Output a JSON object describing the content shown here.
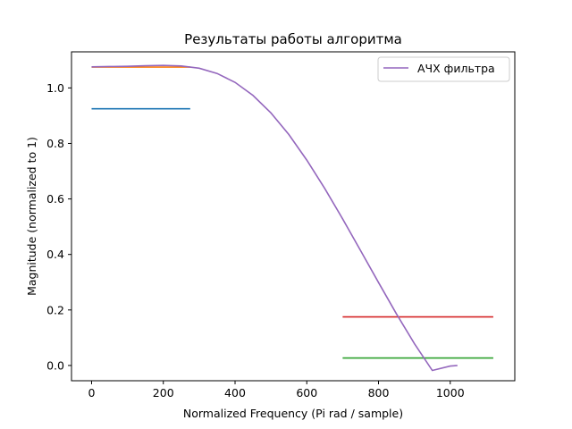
{
  "chart_data": {
    "type": "line",
    "title": "Результаты работы алгоритма",
    "xlabel": "Normalized Frequency (Pi rad / sample)",
    "ylabel": "Magnitude (normalized to 1)",
    "xlim": [
      -56,
      1180
    ],
    "ylim": [
      -0.055,
      1.13
    ],
    "xticks": [
      0,
      200,
      400,
      600,
      800,
      1000
    ],
    "yticks": [
      0.0,
      0.2,
      0.4,
      0.6,
      0.8,
      1.0
    ],
    "grid": false,
    "legend_position": "top-right",
    "legend": [
      "АЧХ фильтра"
    ],
    "series": [
      {
        "color": "#1f77b4",
        "x": [
          0,
          275
        ],
        "y": [
          0.925,
          0.925
        ]
      },
      {
        "color": "#ff7f0e",
        "x": [
          0,
          275
        ],
        "y": [
          1.075,
          1.075
        ]
      },
      {
        "color": "#2ca02c",
        "x": [
          700,
          1120
        ],
        "y": [
          0.027,
          0.027
        ]
      },
      {
        "color": "#d62728",
        "x": [
          700,
          1120
        ],
        "y": [
          0.175,
          0.175
        ]
      },
      {
        "name": "АЧХ фильтра",
        "color": "#9467bd",
        "x": [
          0,
          50,
          100,
          150,
          200,
          250,
          300,
          350,
          400,
          450,
          500,
          550,
          600,
          650,
          700,
          750,
          800,
          850,
          900,
          950,
          1000,
          1020
        ],
        "y": [
          1.076,
          1.077,
          1.078,
          1.08,
          1.081,
          1.079,
          1.071,
          1.052,
          1.02,
          0.973,
          0.91,
          0.832,
          0.74,
          0.638,
          0.528,
          0.414,
          0.299,
          0.186,
          0.079,
          -0.018,
          -0.002,
          0.0
        ]
      }
    ]
  }
}
